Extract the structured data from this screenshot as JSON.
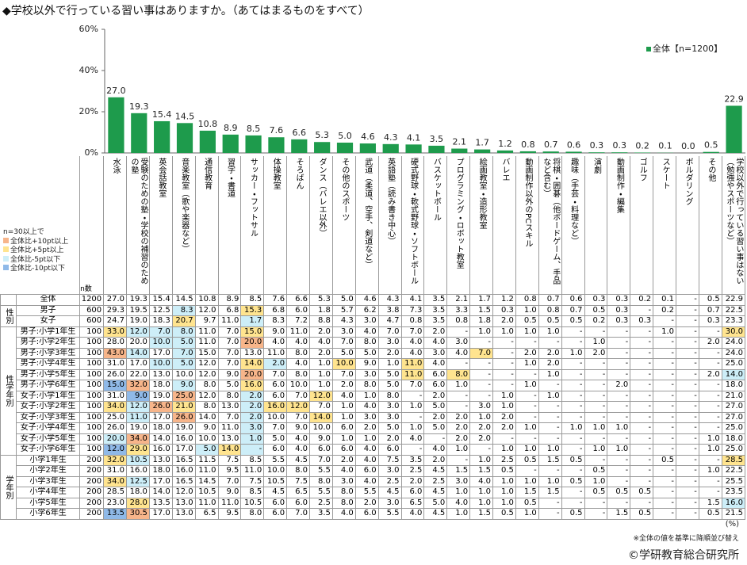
{
  "chart_data": {
    "type": "bar",
    "title": "◆学校以外で行っている習い事はありますか。（あてはまるものをすべて）",
    "categories": [
      "水泳",
      "受験のための塾・学校の補習のための塾",
      "英会話教室",
      "音楽教室（歌や楽器など）",
      "通信教育",
      "習字・書道",
      "サッカー・フットサル",
      "体操教室",
      "そろばん",
      "ダンス（バレエ以外）",
      "その他のスポーツ",
      "武道（柔道、空手、剣道など）",
      "英語塾（読み書き中心）",
      "硬式野球・軟式野球・ソフトボール",
      "バスケットボール",
      "プログラミング・ロボット教室",
      "絵画教室・造形教室",
      "バレエ",
      "動画制作以外のPCスキル",
      "将棋・囲碁（他ボードゲーム、手品など含む）",
      "趣味（手芸・料理など）",
      "演劇",
      "動画制作・編集",
      "ゴルフ",
      "スケート",
      "ボルダリング",
      "その他",
      "学校以外で行っている習い事はない（勉強やスポーツなど）"
    ],
    "series": [
      {
        "name": "全体【n=1200】",
        "color": "#1e9b4c",
        "values": [
          27.0,
          19.3,
          15.4,
          14.5,
          10.8,
          8.9,
          8.5,
          7.6,
          6.6,
          5.3,
          5.0,
          4.6,
          4.3,
          4.1,
          3.5,
          2.1,
          1.7,
          1.2,
          0.8,
          0.7,
          0.6,
          0.3,
          0.3,
          0.2,
          0.1,
          0.0,
          0.5,
          22.9
        ],
        "value_labels": [
          "27.0",
          "19.3",
          "15.4",
          "14.5",
          "10.8",
          "8.9",
          "8.5",
          "7.6",
          "6.6",
          "5.3",
          "5.0",
          "4.6",
          "4.3",
          "4.1",
          "3.5",
          "2.1",
          "1.7",
          "1.2",
          "0.8",
          "0.7",
          "0.6",
          "0.3",
          "0.3",
          "0.2",
          "0.1",
          "0.0",
          "0.5",
          "22.9"
        ]
      }
    ],
    "ylim": [
      0,
      60
    ],
    "yticks": [
      {
        "value": 0,
        "label": "0%"
      },
      {
        "value": 20,
        "label": "20%"
      },
      {
        "value": 40,
        "label": "40%"
      },
      {
        "value": 60,
        "label": "60%"
      }
    ],
    "legend_position": "top-right"
  },
  "table": {
    "n_header": "n数",
    "highlight_legend": {
      "title": "n=30以上で",
      "items": [
        {
          "label": "全体比+10pt以上",
          "color": "#f7b58a",
          "threshold": 10
        },
        {
          "label": "全体比+5pt以上",
          "color": "#ffe48f",
          "threshold": 5
        },
        {
          "label": "全体比-5pt以下",
          "color": "#cdeef8",
          "threshold": -5
        },
        {
          "label": "全体比-10pt以下",
          "color": "#8fb9e8",
          "threshold": -10
        }
      ]
    },
    "total": {
      "label": "全体",
      "n": 1200,
      "values": [
        "27.0",
        "19.3",
        "15.4",
        "14.5",
        "10.8",
        "8.9",
        "8.5",
        "7.6",
        "6.6",
        "5.3",
        "5.0",
        "4.6",
        "4.3",
        "4.1",
        "3.5",
        "2.1",
        "1.7",
        "1.2",
        "0.8",
        "0.7",
        "0.6",
        "0.3",
        "0.3",
        "0.2",
        "0.1",
        "-",
        "0.5",
        "22.9"
      ]
    },
    "groups": [
      {
        "label": "性別",
        "rows": [
          {
            "label": "男子",
            "n": 600,
            "values": [
              "29.3",
              "19.5",
              "12.5",
              "8.3",
              "12.0",
              "6.8",
              "15.3",
              "6.8",
              "6.0",
              "1.8",
              "5.7",
              "6.2",
              "3.8",
              "7.3",
              "3.5",
              "3.3",
              "1.5",
              "0.3",
              "1.0",
              "0.8",
              "0.7",
              "0.5",
              "0.3",
              "-",
              "0.2",
              "-",
              "0.7",
              "22.5"
            ]
          },
          {
            "label": "女子",
            "n": 600,
            "values": [
              "24.7",
              "19.0",
              "18.3",
              "20.7",
              "9.7",
              "11.0",
              "1.7",
              "8.3",
              "7.2",
              "8.8",
              "4.3",
              "3.0",
              "4.7",
              "0.8",
              "3.5",
              "0.8",
              "1.8",
              "2.0",
              "0.5",
              "0.5",
              "0.5",
              "0.2",
              "0.3",
              "0.3",
              "-",
              "-",
              "0.3",
              "23.3"
            ]
          }
        ]
      },
      {
        "label": "性学年別",
        "rows": [
          {
            "label": "男子:小学1年生",
            "n": 100,
            "values": [
              "33.0",
              "12.0",
              "7.0",
              "8.0",
              "11.0",
              "7.0",
              "15.0",
              "9.0",
              "11.0",
              "2.0",
              "3.0",
              "4.0",
              "7.0",
              "7.0",
              "2.0",
              "-",
              "1.0",
              "1.0",
              "1.0",
              "1.0",
              "-",
              "-",
              "-",
              "-",
              "1.0",
              "-",
              "-",
              "30.0"
            ]
          },
          {
            "label": "男子:小学2年生",
            "n": 100,
            "values": [
              "28.0",
              "20.0",
              "10.0",
              "5.0",
              "11.0",
              "7.0",
              "20.0",
              "4.0",
              "4.0",
              "4.0",
              "7.0",
              "8.0",
              "3.0",
              "4.0",
              "4.0",
              "3.0",
              "-",
              "-",
              "-",
              "-",
              "-",
              "1.0",
              "-",
              "-",
              "-",
              "-",
              "2.0",
              "24.0"
            ]
          },
          {
            "label": "男子:小学3年生",
            "n": 100,
            "values": [
              "43.0",
              "14.0",
              "17.0",
              "7.0",
              "15.0",
              "7.0",
              "13.0",
              "11.0",
              "8.0",
              "2.0",
              "5.0",
              "5.0",
              "2.0",
              "4.0",
              "3.0",
              "4.0",
              "7.0",
              "-",
              "2.0",
              "2.0",
              "1.0",
              "2.0",
              "-",
              "-",
              "-",
              "-",
              "-",
              "24.0"
            ]
          },
          {
            "label": "男子:小学4年生",
            "n": 100,
            "values": [
              "31.0",
              "17.0",
              "10.0",
              "5.0",
              "12.0",
              "7.0",
              "14.0",
              "2.0",
              "4.0",
              "1.0",
              "10.0",
              "9.0",
              "1.0",
              "11.0",
              "4.0",
              "-",
              "-",
              "-",
              "1.0",
              "2.0",
              "-",
              "-",
              "-",
              "-",
              "-",
              "-",
              "-",
              "25.0"
            ]
          },
          {
            "label": "男子:小学5年生",
            "n": 100,
            "values": [
              "26.0",
              "22.0",
              "13.0",
              "10.0",
              "12.0",
              "9.0",
              "20.0",
              "7.0",
              "8.0",
              "1.0",
              "7.0",
              "3.0",
              "5.0",
              "11.0",
              "6.0",
              "8.0",
              "-",
              "-",
              "-",
              "1.0",
              "-",
              "-",
              "-",
              "-",
              "-",
              "-",
              "2.0",
              "14.0"
            ]
          },
          {
            "label": "男子:小学6年生",
            "n": 100,
            "values": [
              "15.0",
              "32.0",
              "18.0",
              "9.0",
              "8.0",
              "5.0",
              "16.0",
              "6.0",
              "10.0",
              "1.0",
              "2.0",
              "8.0",
              "5.0",
              "7.0",
              "6.0",
              "1.0",
              "-",
              "-",
              "1.0",
              "-",
              "-",
              "-",
              "2.0",
              "-",
              "-",
              "-",
              "-",
              "18.0"
            ]
          },
          {
            "label": "女子:小学1年生",
            "n": 100,
            "values": [
              "31.0",
              "9.0",
              "19.0",
              "25.0",
              "12.0",
              "8.0",
              "2.0",
              "6.0",
              "7.0",
              "12.0",
              "4.0",
              "1.0",
              "8.0",
              "-",
              "2.0",
              "-",
              "-",
              "1.0",
              "-",
              "1.0",
              "-",
              "-",
              "-",
              "-",
              "-",
              "-",
              "-",
              "21.0"
            ]
          },
          {
            "label": "女子:小学2年生",
            "n": 100,
            "values": [
              "34.0",
              "12.0",
              "26.0",
              "21.0",
              "8.0",
              "13.0",
              "2.0",
              "16.0",
              "12.0",
              "7.0",
              "1.0",
              "4.0",
              "3.0",
              "1.0",
              "5.0",
              "-",
              "3.0",
              "1.0",
              "-",
              "-",
              "-",
              "-",
              "-",
              "-",
              "-",
              "-",
              "-",
              "27.0"
            ]
          },
          {
            "label": "女子:小学3年生",
            "n": 100,
            "values": [
              "25.0",
              "11.0",
              "17.0",
              "26.0",
              "14.0",
              "7.0",
              "2.0",
              "10.0",
              "7.0",
              "14.0",
              "1.0",
              "3.0",
              "3.0",
              "-",
              "2.0",
              "2.0",
              "1.0",
              "2.0",
              "-",
              "-",
              "-",
              "-",
              "-",
              "-",
              "-",
              "-",
              "-",
              "27.0"
            ]
          },
          {
            "label": "女子:小学4年生",
            "n": 100,
            "values": [
              "26.0",
              "19.0",
              "18.0",
              "19.0",
              "9.0",
              "11.0",
              "3.0",
              "7.0",
              "9.0",
              "10.0",
              "6.0",
              "2.0",
              "5.0",
              "1.0",
              "5.0",
              "2.0",
              "2.0",
              "2.0",
              "1.0",
              "-",
              "1.0",
              "1.0",
              "1.0",
              "-",
              "-",
              "-",
              "-",
              "25.0"
            ]
          },
          {
            "label": "女子:小学5年生",
            "n": 100,
            "values": [
              "20.0",
              "34.0",
              "14.0",
              "16.0",
              "10.0",
              "13.0",
              "1.0",
              "5.0",
              "4.0",
              "9.0",
              "1.0",
              "1.0",
              "2.0",
              "4.0",
              "-",
              "2.0",
              "2.0",
              "-",
              "-",
              "-",
              "-",
              "-",
              "-",
              "-",
              "-",
              "-",
              "1.0",
              "18.0"
            ]
          },
          {
            "label": "女子:小学6年生",
            "n": 100,
            "values": [
              "12.0",
              "29.0",
              "16.0",
              "17.0",
              "5.0",
              "14.0",
              "-",
              "6.0",
              "4.0",
              "6.0",
              "6.0",
              "4.0",
              "6.0",
              "-",
              "4.0",
              "1.0",
              "-",
              "1.0",
              "1.0",
              "1.0",
              "-",
              "1.0",
              "1.0",
              "-",
              "-",
              "-",
              "1.0",
              "25.0"
            ]
          }
        ]
      },
      {
        "label": "学年別",
        "rows": [
          {
            "label": "小学1年生",
            "n": 200,
            "values": [
              "32.0",
              "10.5",
              "13.0",
              "16.5",
              "11.5",
              "7.5",
              "8.5",
              "5.5",
              "4.5",
              "7.0",
              "2.0",
              "4.0",
              "7.5",
              "3.5",
              "2.0",
              "-",
              "1.0",
              "2.5",
              "0.5",
              "1.5",
              "0.5",
              "-",
              "-",
              "-",
              "0.5",
              "-",
              "-",
              "28.5"
            ]
          },
          {
            "label": "小学2年生",
            "n": 200,
            "values": [
              "31.0",
              "16.0",
              "18.0",
              "16.0",
              "11.0",
              "9.5",
              "11.0",
              "10.0",
              "8.0",
              "5.5",
              "4.0",
              "6.0",
              "3.0",
              "2.5",
              "4.5",
              "1.5",
              "1.5",
              "0.5",
              "-",
              "-",
              "-",
              "0.5",
              "-",
              "-",
              "-",
              "-",
              "1.0",
              "22.5"
            ]
          },
          {
            "label": "小学3年生",
            "n": 200,
            "values": [
              "34.0",
              "12.5",
              "17.0",
              "16.5",
              "14.5",
              "7.0",
              "7.5",
              "10.5",
              "7.5",
              "8.0",
              "3.0",
              "4.0",
              "2.5",
              "2.0",
              "2.5",
              "3.0",
              "4.0",
              "1.0",
              "1.0",
              "1.0",
              "0.5",
              "1.0",
              "-",
              "-",
              "-",
              "-",
              "-",
              "25.5"
            ]
          },
          {
            "label": "小学4年生",
            "n": 200,
            "values": [
              "28.5",
              "18.0",
              "14.0",
              "12.0",
              "10.5",
              "9.0",
              "8.5",
              "4.5",
              "6.5",
              "5.5",
              "8.0",
              "5.5",
              "4.5",
              "6.0",
              "4.5",
              "1.0",
              "1.0",
              "1.0",
              "1.5",
              "1.5",
              "-",
              "0.5",
              "0.5",
              "0.5",
              "-",
              "-",
              "-",
              "23.5"
            ]
          },
          {
            "label": "小学5年生",
            "n": 200,
            "values": [
              "23.0",
              "28.0",
              "13.5",
              "13.0",
              "11.0",
              "11.0",
              "10.5",
              "6.0",
              "6.0",
              "2.5",
              "8.0",
              "2.0",
              "3.0",
              "6.5",
              "5.0",
              "4.0",
              "1.0",
              "1.0",
              "0.5",
              "-",
              "-",
              "-",
              "-",
              "-",
              "-",
              "-",
              "1.5",
              "16.0"
            ]
          },
          {
            "label": "小学6年生",
            "n": 200,
            "values": [
              "13.5",
              "30.5",
              "17.0",
              "13.0",
              "6.5",
              "9.5",
              "8.0",
              "6.0",
              "7.0",
              "3.5",
              "4.0",
              "6.0",
              "5.5",
              "4.0",
              "4.5",
              "1.0",
              "1.5",
              "0.5",
              "1.0",
              "-",
              "0.5",
              "-",
              "1.5",
              "0.5",
              "-",
              "-",
              "0.5",
              "21.5"
            ]
          }
        ]
      }
    ]
  },
  "notes": {
    "unit": "(%)",
    "sort_note": "※全体の値を基準に降順並び替え",
    "copyright": "©学研教育総合研究所"
  }
}
